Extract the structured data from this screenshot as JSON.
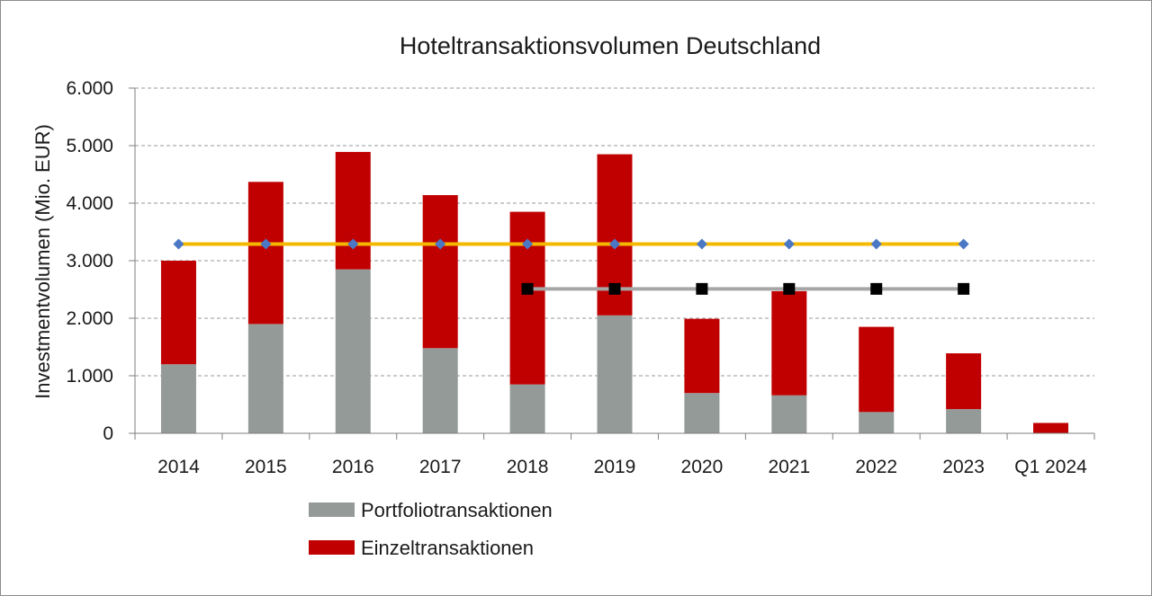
{
  "chart_data": {
    "type": "bar",
    "title": "Hoteltransaktionsvolumen Deutschland",
    "xlabel": "",
    "ylabel": "Investmentvolumen (Mio. EUR)",
    "ylim": [
      0,
      6000
    ],
    "yticks": [
      0,
      1000,
      2000,
      3000,
      4000,
      5000,
      6000
    ],
    "ytick_labels": [
      "0",
      "1.000",
      "2.000",
      "3.000",
      "4.000",
      "5.000",
      "6.000"
    ],
    "categories": [
      "2014",
      "2015",
      "2016",
      "2017",
      "2018",
      "2019",
      "2020",
      "2021",
      "2022",
      "2023",
      "Q1 2024"
    ],
    "stacked": true,
    "grid": true,
    "legend_position": "bottom-left",
    "series": [
      {
        "name": "Portfoliotransaktionen",
        "color": "#939a97",
        "values": [
          1200,
          1900,
          2850,
          1480,
          850,
          2050,
          700,
          660,
          370,
          420,
          0
        ]
      },
      {
        "name": "Einzeltransaktionen",
        "color": "#c00000",
        "values": [
          1800,
          2470,
          2040,
          2660,
          3000,
          2800,
          1290,
          1810,
          1480,
          970,
          180
        ]
      }
    ],
    "lines": [
      {
        "color": "#f5b800",
        "marker_color": "#4a78c5",
        "marker": "diamond",
        "x_start": "2014",
        "x_end": "2023",
        "value": 3290
      },
      {
        "color": "#a6a6a6",
        "marker_color": "#000000",
        "marker": "square",
        "x_start": "2018",
        "x_end": "2023",
        "value": 2510
      }
    ]
  }
}
